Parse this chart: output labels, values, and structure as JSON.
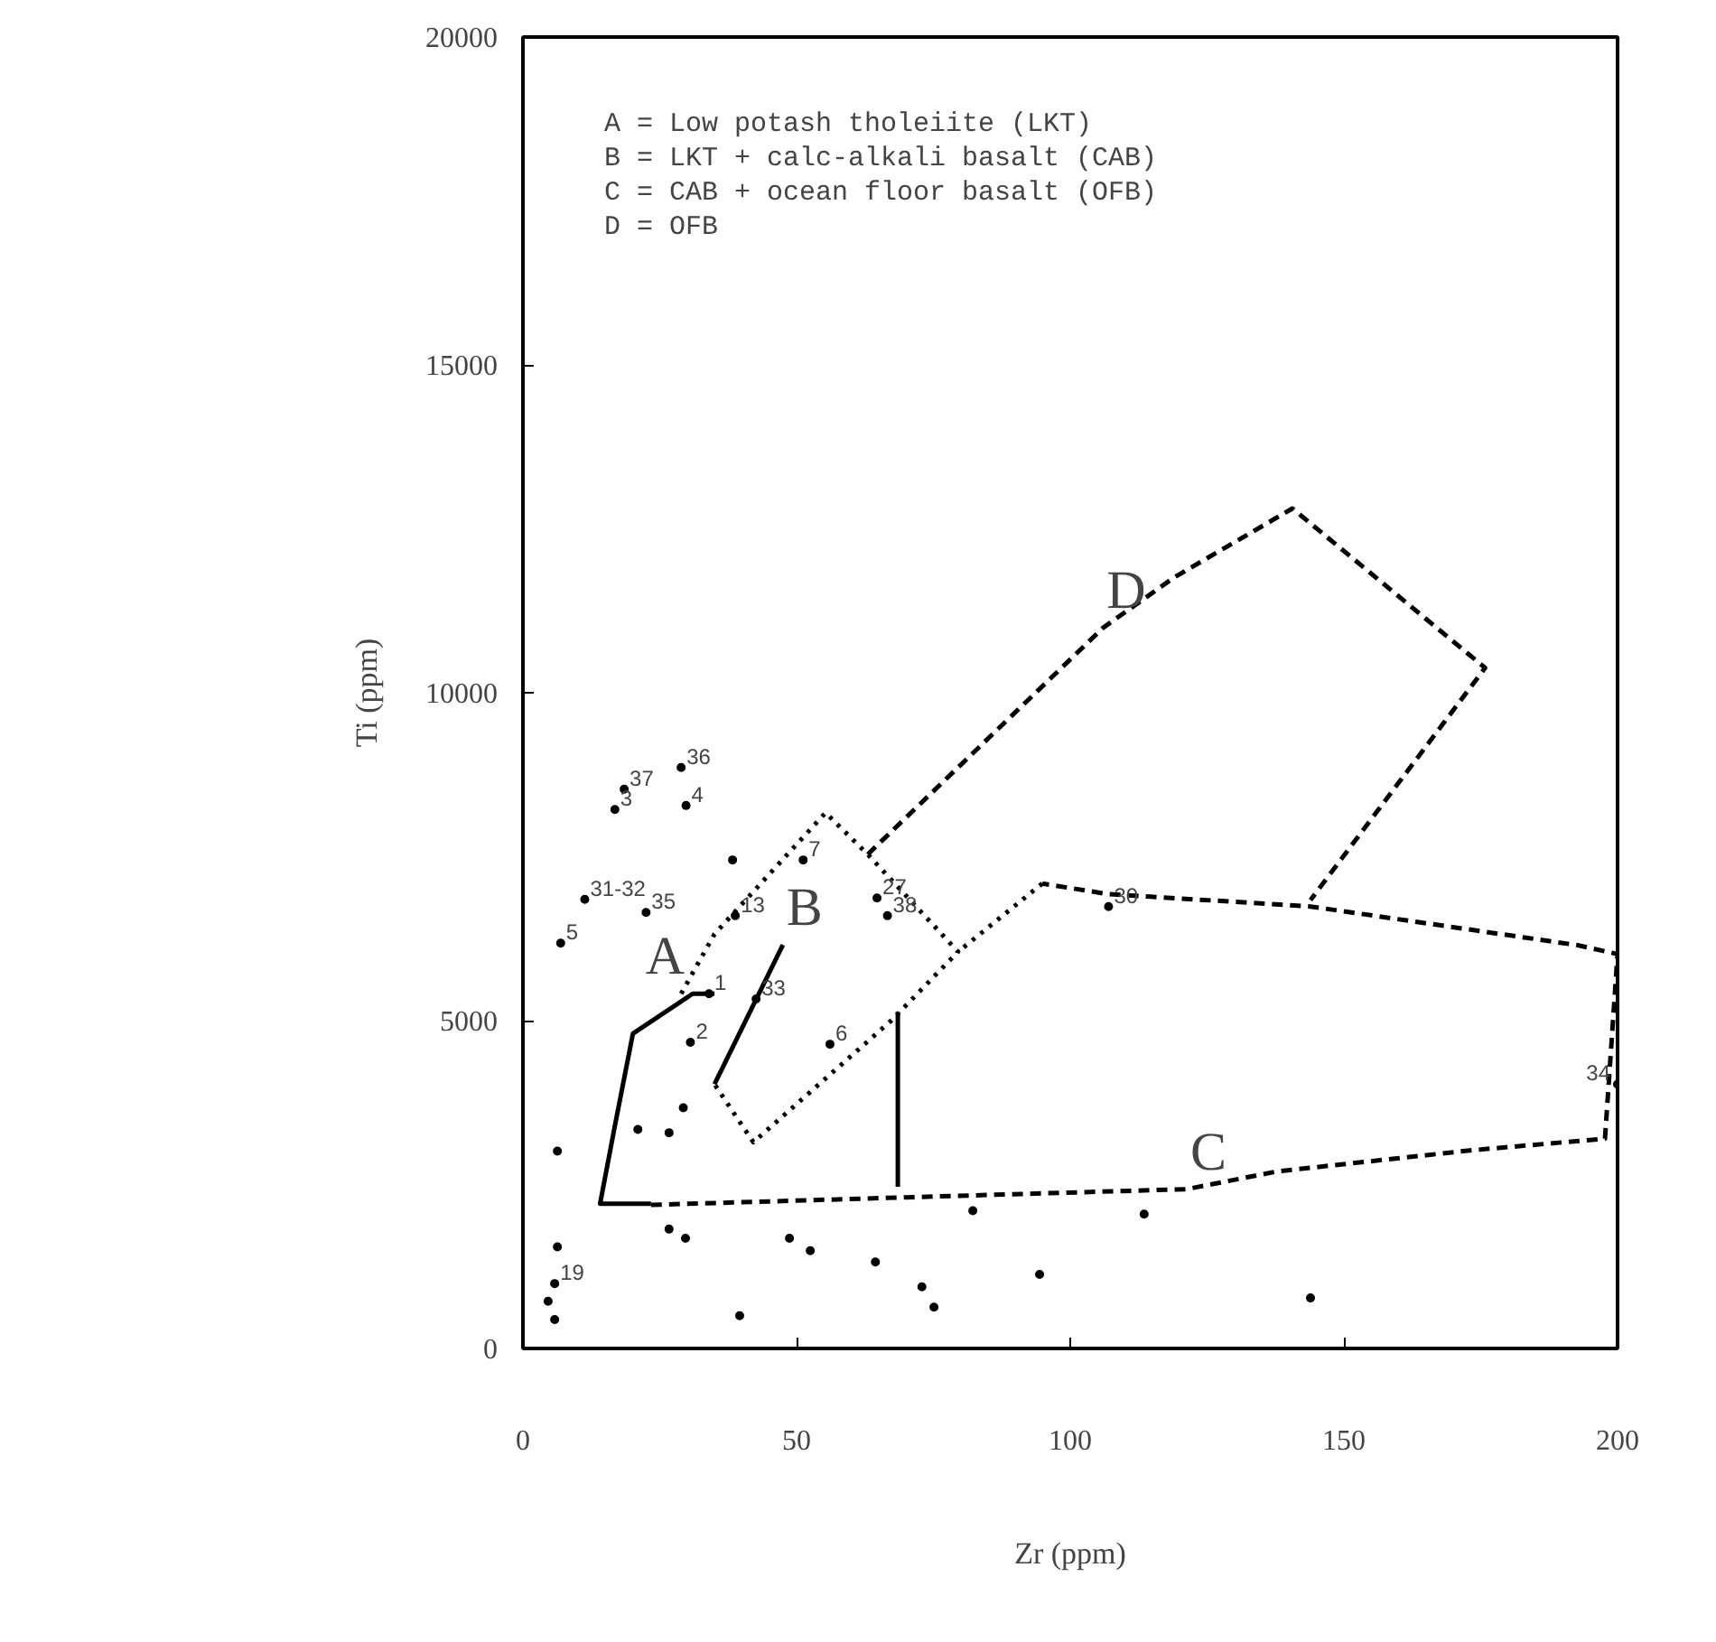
{
  "chart_data": {
    "type": "scatter",
    "xlabel": "Zr (ppm)",
    "ylabel": "Ti (ppm)",
    "xlim": [
      0,
      200
    ],
    "ylim": [
      0,
      20000
    ],
    "xticks": [
      0,
      50,
      100,
      150,
      200
    ],
    "yticks": [
      0,
      5000,
      10000,
      15000,
      20000
    ],
    "marker": "circle",
    "series": [
      {
        "color": "#000000",
        "x": [
          16.8,
          18.5,
          28.9,
          29.8,
          11.3,
          22.5,
          6.9,
          34,
          38.8,
          51.2,
          64.7,
          66.6,
          42.6,
          30.6,
          56.1,
          5.8,
          107,
          200,
          6.3,
          38.3,
          29.3,
          21,
          26.7,
          26.7,
          29.7,
          48.7,
          52.5,
          64.4,
          72.9,
          75.1,
          39.6,
          6.3,
          4.6,
          5.8,
          82.2,
          113.5,
          94.4,
          143.9
        ],
        "values": [
          8220,
          8530,
          8860,
          8280,
          6850,
          6650,
          6180,
          5410,
          6600,
          7450,
          6870,
          6600,
          5330,
          4670,
          4640,
          990,
          6740,
          4030,
          3010,
          7450,
          3670,
          3340,
          3290,
          1820,
          1680,
          1680,
          1490,
          1320,
          940,
          630,
          500,
          1550,
          720,
          440,
          2100,
          2050,
          1130,
          770
        ]
      },
      {
        "type": "line",
        "marker": "none",
        "color": "#000000",
        "line_style": "solid",
        "x": [
          35,
          31,
          20.1,
          16.8,
          14.1,
          23.4
        ],
        "values": [
          5410,
          5410,
          4803,
          3395,
          2208,
          2208
        ]
      },
      {
        "type": "line",
        "marker": "none",
        "color": "#000000",
        "line_style": "dotted",
        "x": [
          28.9,
          35,
          55.3,
          63,
          79.5,
          67.3,
          42.1,
          35
        ],
        "values": [
          5410,
          6320,
          8170,
          7535,
          6050,
          5000,
          3146,
          4030
        ]
      },
      {
        "type": "line",
        "marker": "none",
        "color": "#000000",
        "line_style": "solid",
        "x": [
          35,
          47.5
        ],
        "values": [
          4030,
          6155
        ]
      },
      {
        "type": "line",
        "marker": "none",
        "color": "#000000",
        "line_style": "dashed",
        "x": [
          23.4,
          121.3,
          137.8,
          173,
          197.7,
          200,
          192.7,
          143.9,
          106.9,
          94.9
        ],
        "values": [
          2190,
          2430,
          2700,
          3020,
          3200,
          6015,
          6150,
          6740,
          6930,
          7090
        ]
      },
      {
        "type": "line",
        "marker": "none",
        "color": "#000000",
        "line_style": "dotted",
        "x": [
          94.9,
          79.5
        ],
        "values": [
          7090,
          6050
        ]
      },
      {
        "type": "line",
        "marker": "none",
        "color": "#000000",
        "line_style": "solid",
        "x": [
          68.5,
          68.5
        ],
        "values": [
          5130,
          2465
        ]
      },
      {
        "type": "line",
        "marker": "none",
        "color": "#000000",
        "line_style": "dashed",
        "x": [
          63,
          106,
          119,
          140.6,
          175.8,
          143.9
        ],
        "values": [
          7535,
          10990,
          11760,
          12810,
          10380,
          6840
        ]
      }
    ],
    "annotations": [
      "A = Low potash tholeiite (LKT)",
      "B = LKT + calc-alkali basalt (CAB)",
      "C = CAB + ocean floor basalt (OFB)",
      "D = OFB",
      {
        "text": "A",
        "x": 28.9,
        "y": 5410
      },
      {
        "text": "B",
        "x": 47.5,
        "y": 6155
      },
      {
        "text": "C",
        "x": 121.3,
        "y": 2430
      },
      {
        "text": "D",
        "x": 106,
        "y": 10990
      },
      {
        "text": "3",
        "x": 16.8,
        "y": 8220
      },
      {
        "text": "37",
        "x": 18.5,
        "y": 8530
      },
      {
        "text": "36",
        "x": 28.9,
        "y": 8860
      },
      {
        "text": "4",
        "x": 29.8,
        "y": 8280
      },
      {
        "text": "31-32",
        "x": 11.3,
        "y": 6850
      },
      {
        "text": "35",
        "x": 22.5,
        "y": 6650
      },
      {
        "text": "5",
        "x": 6.9,
        "y": 6180
      },
      {
        "text": "1",
        "x": 34,
        "y": 5410
      },
      {
        "text": "13",
        "x": 38.8,
        "y": 6600
      },
      {
        "text": "7",
        "x": 51.2,
        "y": 7450
      },
      {
        "text": "27",
        "x": 64.7,
        "y": 6870
      },
      {
        "text": "38",
        "x": 66.6,
        "y": 6600
      },
      {
        "text": "33",
        "x": 42.6,
        "y": 5330
      },
      {
        "text": "2",
        "x": 30.6,
        "y": 4670
      },
      {
        "text": "6",
        "x": 56.1,
        "y": 4640
      },
      {
        "text": "19",
        "x": 5.8,
        "y": 990
      },
      {
        "text": "30",
        "x": 107,
        "y": 6740
      },
      {
        "text": "34",
        "x": 200,
        "y": 4030
      }
    ]
  }
}
